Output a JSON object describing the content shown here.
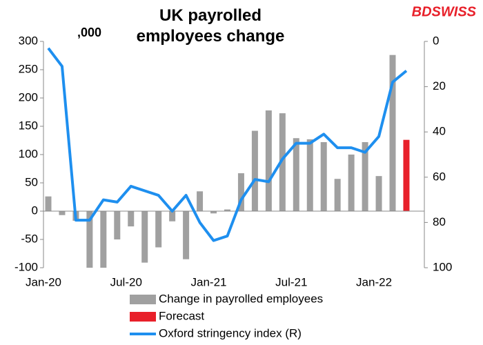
{
  "chart_data": {
    "type": "bar",
    "title": "UK payrolled employees change",
    "annotation": ",000",
    "brand": "BDSWISS",
    "categories": [
      "Jan-20",
      null,
      null,
      null,
      null,
      null,
      "Jul-20",
      null,
      null,
      null,
      null,
      null,
      "Jan-21",
      null,
      null,
      null,
      null,
      null,
      "Jul-21",
      null,
      null,
      null,
      null,
      null,
      "Jan-22",
      null,
      null
    ],
    "series": [
      {
        "name": "Change in payrolled employees",
        "color": "#a0a0a0",
        "values": [
          26,
          -7,
          -17,
          -100,
          -100,
          -50,
          -27,
          -91,
          -64,
          -18,
          -85,
          35,
          -4,
          3,
          67,
          142,
          178,
          173,
          129,
          127,
          122,
          57,
          100,
          122,
          62,
          276,
          null
        ]
      },
      {
        "name": "Forecast",
        "color": "#e8202a",
        "values": [
          null,
          null,
          null,
          null,
          null,
          null,
          null,
          null,
          null,
          null,
          null,
          null,
          null,
          null,
          null,
          null,
          null,
          null,
          null,
          null,
          null,
          null,
          null,
          null,
          null,
          null,
          126
        ]
      },
      {
        "name": "Oxford stringency index (R)",
        "color": "#1e8fef",
        "type": "line",
        "axis": "y2",
        "values": [
          3,
          11,
          79,
          79,
          70,
          71,
          64,
          66,
          68,
          75,
          68,
          80,
          88,
          86,
          70,
          61,
          62,
          52,
          45,
          45,
          41,
          47,
          47,
          49,
          42,
          18,
          13
        ]
      }
    ],
    "ylim": [
      -100,
      300
    ],
    "yticks": [
      -100,
      -50,
      0,
      50,
      100,
      150,
      200,
      250,
      300
    ],
    "y2lim": [
      0,
      100
    ],
    "y2ticks": [
      0,
      20,
      40,
      60,
      80,
      100
    ],
    "y2_inverted": true
  }
}
